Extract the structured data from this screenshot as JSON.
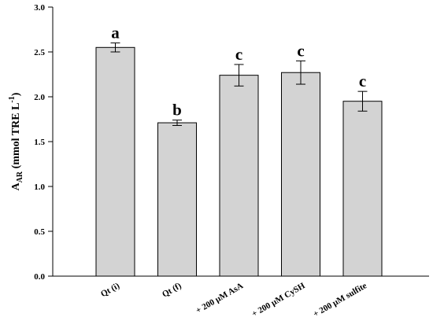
{
  "chart_data": {
    "type": "bar",
    "title": "",
    "xlabel": "",
    "ylabel": {
      "main": "A",
      "sub": "AR",
      "rest": " (mmol TRE L",
      "sup": "-1",
      "close": ")"
    },
    "ylim": [
      0,
      3.0
    ],
    "yticks": [
      "0.0",
      "0.5",
      "1.0",
      "1.5",
      "2.0",
      "2.5",
      "3.0"
    ],
    "categories": [
      "Qt (i)",
      "Qt (f)",
      "+ 200 μM AsA",
      "+ 200 μM CySH",
      "+ 200 μM sulfite"
    ],
    "values": [
      2.55,
      1.71,
      2.24,
      2.27,
      1.95
    ],
    "errors": [
      0.05,
      0.03,
      0.12,
      0.13,
      0.11
    ],
    "significance": [
      "a",
      "b",
      "c",
      "c",
      "c"
    ],
    "bar_color": "#d3d3d3",
    "grid": false,
    "legend": "none"
  }
}
